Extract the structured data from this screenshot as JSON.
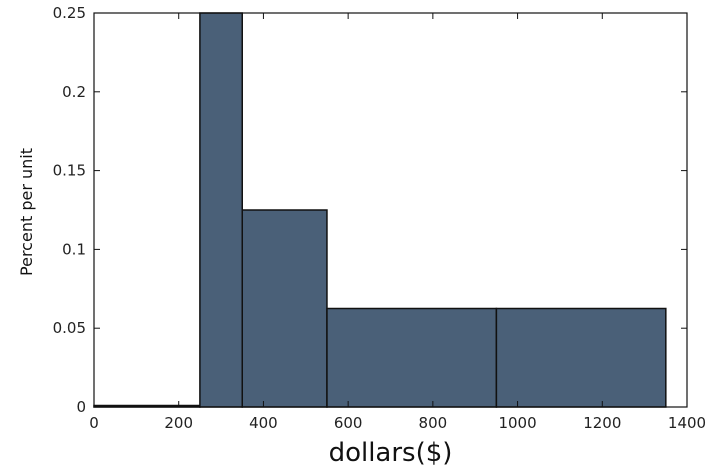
{
  "chart_data": {
    "type": "histogram",
    "title": "",
    "xlabel": "dollars($)",
    "ylabel": "Percent per unit",
    "xlim": [
      0,
      1400
    ],
    "ylim": [
      0,
      0.25
    ],
    "xticks": [
      0,
      200,
      400,
      600,
      800,
      1000,
      1200,
      1400
    ],
    "yticks": [
      0,
      0.05,
      0.1,
      0.15,
      0.2,
      0.25
    ],
    "xtick_labels": [
      "0",
      "200",
      "400",
      "600",
      "800",
      "1000",
      "1200",
      "1400"
    ],
    "ytick_labels": [
      "0",
      "0.05",
      "0.1",
      "0.15",
      "0.2",
      "0.25"
    ],
    "bins": [
      {
        "start": 0,
        "end": 250,
        "value": 0
      },
      {
        "start": 250,
        "end": 350,
        "value": 0.25
      },
      {
        "start": 350,
        "end": 550,
        "value": 0.125
      },
      {
        "start": 550,
        "end": 950,
        "value": 0.0625
      },
      {
        "start": 950,
        "end": 1350,
        "value": 0.0625
      }
    ],
    "bar_color": "#4a6078",
    "edge_color": "#111111",
    "grid": false
  }
}
